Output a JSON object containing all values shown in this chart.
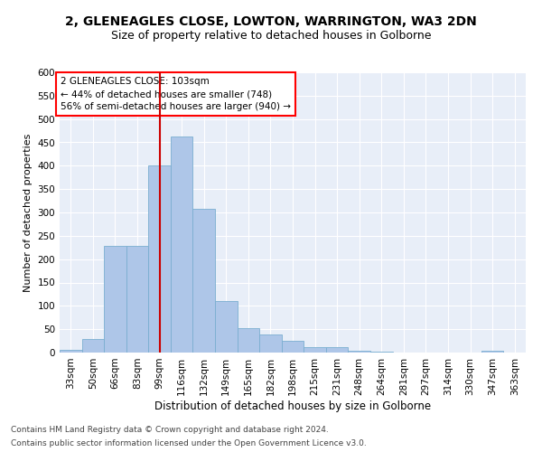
{
  "title": "2, GLENEAGLES CLOSE, LOWTON, WARRINGTON, WA3 2DN",
  "subtitle": "Size of property relative to detached houses in Golborne",
  "xlabel": "Distribution of detached houses by size in Golborne",
  "ylabel": "Number of detached properties",
  "bar_color": "#aec6e8",
  "bar_edge_color": "#7aaed0",
  "redline_color": "#cc0000",
  "background_color": "#e8eef8",
  "grid_color": "#ffffff",
  "categories": [
    "33sqm",
    "50sqm",
    "66sqm",
    "83sqm",
    "99sqm",
    "116sqm",
    "132sqm",
    "149sqm",
    "165sqm",
    "182sqm",
    "198sqm",
    "215sqm",
    "231sqm",
    "248sqm",
    "264sqm",
    "281sqm",
    "297sqm",
    "314sqm",
    "330sqm",
    "347sqm",
    "363sqm"
  ],
  "values": [
    5,
    30,
    228,
    228,
    400,
    463,
    307,
    110,
    53,
    39,
    26,
    12,
    11,
    4,
    1,
    0,
    0,
    0,
    0,
    4,
    0
  ],
  "redline_index": 4,
  "ylim": [
    0,
    600
  ],
  "yticks": [
    0,
    50,
    100,
    150,
    200,
    250,
    300,
    350,
    400,
    450,
    500,
    550,
    600
  ],
  "annotation_text": "2 GLENEAGLES CLOSE: 103sqm\n← 44% of detached houses are smaller (748)\n56% of semi-detached houses are larger (940) →",
  "footnote1": "Contains HM Land Registry data © Crown copyright and database right 2024.",
  "footnote2": "Contains public sector information licensed under the Open Government Licence v3.0.",
  "title_fontsize": 10,
  "subtitle_fontsize": 9,
  "xlabel_fontsize": 8.5,
  "ylabel_fontsize": 8,
  "tick_fontsize": 7.5,
  "annotation_fontsize": 7.5,
  "footnote_fontsize": 6.5
}
